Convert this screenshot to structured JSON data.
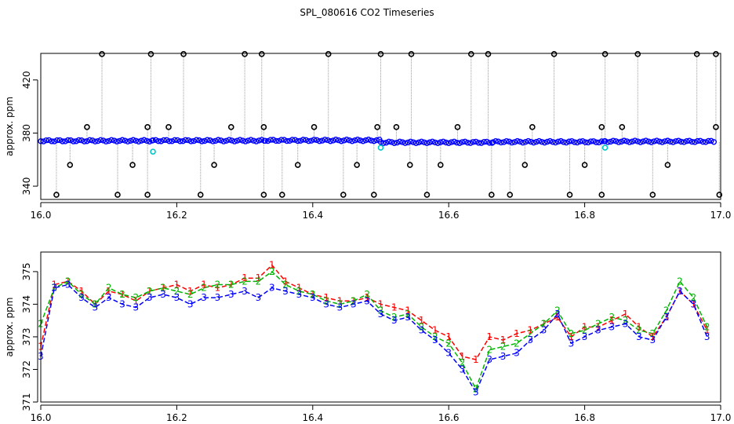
{
  "title": "SPL_080616  CO2 Timeseries",
  "colors": {
    "frame": "#000000",
    "drop_line": "#9a9a9a",
    "outlier_marker": "#000000",
    "main_marker": "#0000ff",
    "flag_marker": "#00c8c8",
    "trace_1": "#ff0000",
    "trace_2": "#00b400",
    "trace_3": "#0000ff"
  },
  "chart_data": [
    {
      "type": "scatter",
      "ylabel": "approx. ppm",
      "xlabel": "",
      "xlim": [
        16.0,
        17.0
      ],
      "ylim": [
        330,
        440
      ],
      "x_ticks": [
        "16.0",
        "16.2",
        "16.4",
        "16.6",
        "16.8",
        "17.0"
      ],
      "y_ticks": [
        "340",
        "380",
        "420"
      ],
      "grid": false,
      "baseline": {
        "segments": [
          {
            "x0": 16.0,
            "x1": 16.165,
            "y": 374.2
          },
          {
            "x0": 16.165,
            "x1": 16.33,
            "y": 374.3
          },
          {
            "x0": 16.33,
            "x1": 16.5,
            "y": 374.5
          },
          {
            "x0": 16.5,
            "x1": 16.665,
            "y": 373.0
          },
          {
            "x0": 16.665,
            "x1": 16.83,
            "y": 373.4
          },
          {
            "x0": 16.83,
            "x1": 16.99,
            "y": 373.7
          }
        ]
      },
      "high_outliers": [
        16.09,
        16.162,
        16.21,
        16.3,
        16.325,
        16.423,
        16.5,
        16.545,
        16.633,
        16.658,
        16.755,
        16.83,
        16.878,
        16.965,
        16.993
      ],
      "low_outliers": [
        16.023,
        16.113,
        16.157,
        16.235,
        16.328,
        16.355,
        16.445,
        16.49,
        16.568,
        16.663,
        16.69,
        16.778,
        16.825,
        16.9,
        16.998
      ],
      "mid_high_outliers": [
        16.068,
        16.157,
        16.188,
        16.28,
        16.328,
        16.402,
        16.495,
        16.523,
        16.613,
        16.723,
        16.825,
        16.855,
        16.993
      ],
      "mid_low_outliers": [
        16.043,
        16.135,
        16.255,
        16.378,
        16.465,
        16.543,
        16.588,
        16.712,
        16.8,
        16.922
      ],
      "flag_points": [
        {
          "x": 16.165,
          "y": 366
        },
        {
          "x": 16.5,
          "y": 369
        },
        {
          "x": 16.83,
          "y": 369
        }
      ]
    },
    {
      "type": "line",
      "ylabel": "approx. ppm",
      "xlabel": "",
      "xlim": [
        16.0,
        17.0
      ],
      "ylim": [
        371.0,
        375.6
      ],
      "x_ticks": [
        "16.0",
        "16.2",
        "16.4",
        "16.6",
        "16.8",
        "17.0"
      ],
      "y_ticks": [
        "371",
        "372",
        "373",
        "374",
        "375"
      ],
      "grid": false,
      "x": [
        16.0,
        16.02,
        16.04,
        16.06,
        16.08,
        16.1,
        16.12,
        16.14,
        16.16,
        16.18,
        16.2,
        16.22,
        16.24,
        16.26,
        16.28,
        16.3,
        16.32,
        16.34,
        16.36,
        16.38,
        16.4,
        16.42,
        16.44,
        16.46,
        16.48,
        16.5,
        16.52,
        16.54,
        16.56,
        16.58,
        16.6,
        16.62,
        16.64,
        16.66,
        16.68,
        16.7,
        16.72,
        16.74,
        16.76,
        16.78,
        16.8,
        16.82,
        16.84,
        16.86,
        16.88,
        16.9,
        16.92,
        16.94,
        16.96,
        16.98
      ],
      "series": [
        {
          "name": "1",
          "values": [
            372.7,
            374.6,
            374.7,
            374.4,
            374.0,
            374.4,
            374.3,
            374.1,
            374.4,
            374.5,
            374.6,
            374.4,
            374.6,
            374.5,
            374.6,
            374.8,
            374.8,
            375.2,
            374.7,
            374.5,
            374.3,
            374.2,
            374.1,
            374.1,
            374.2,
            374.0,
            373.9,
            373.8,
            373.5,
            373.2,
            373.0,
            372.4,
            372.3,
            373.0,
            372.9,
            373.1,
            373.2,
            373.4,
            373.6,
            373.0,
            373.3,
            373.3,
            373.5,
            373.7,
            373.3,
            373.0,
            373.6,
            374.4,
            374.0,
            373.2
          ]
        },
        {
          "name": "2",
          "values": [
            373.4,
            374.5,
            374.7,
            374.3,
            374.0,
            374.5,
            374.3,
            374.2,
            374.4,
            374.5,
            374.4,
            374.3,
            374.5,
            374.6,
            374.6,
            374.7,
            374.7,
            375.0,
            374.6,
            374.4,
            374.3,
            374.1,
            374.0,
            374.1,
            374.3,
            373.8,
            373.6,
            373.7,
            373.3,
            373.0,
            372.8,
            372.2,
            371.4,
            372.6,
            372.7,
            372.8,
            373.1,
            373.4,
            373.8,
            373.1,
            373.2,
            373.4,
            373.6,
            373.5,
            373.2,
            373.1,
            373.8,
            374.7,
            374.2,
            373.3
          ]
        },
        {
          "name": "3",
          "values": [
            372.4,
            374.5,
            374.6,
            374.2,
            373.9,
            374.2,
            374.0,
            373.9,
            374.2,
            374.3,
            374.2,
            374.0,
            374.2,
            374.2,
            374.3,
            374.4,
            374.2,
            374.5,
            374.4,
            374.3,
            374.2,
            374.0,
            373.9,
            374.0,
            374.1,
            373.7,
            373.5,
            373.6,
            373.2,
            372.9,
            372.5,
            372.0,
            371.3,
            372.3,
            372.4,
            372.5,
            372.9,
            373.2,
            373.7,
            372.8,
            373.0,
            373.2,
            373.3,
            373.4,
            373.0,
            372.9,
            373.6,
            374.4,
            374.0,
            373.0
          ]
        }
      ]
    }
  ]
}
